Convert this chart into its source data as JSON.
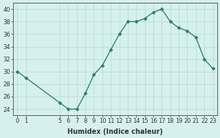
{
  "x": [
    0,
    1,
    5,
    6,
    7,
    8,
    9,
    10,
    11,
    12,
    13,
    14,
    15,
    16,
    17,
    18,
    19,
    20,
    21,
    22,
    23
  ],
  "y": [
    30,
    29,
    25,
    24,
    24,
    26.5,
    29.5,
    31,
    33.5,
    36,
    38,
    38,
    38.5,
    39.5,
    40,
    38,
    37,
    36.5,
    35.5,
    32,
    30.5
  ],
  "xlabel": "Humidex (Indice chaleur)",
  "xticks": [
    0,
    1,
    5,
    6,
    7,
    8,
    9,
    10,
    11,
    12,
    13,
    14,
    15,
    16,
    17,
    18,
    19,
    20,
    21,
    22,
    23
  ],
  "yticks": [
    24,
    26,
    28,
    30,
    32,
    34,
    36,
    38,
    40
  ],
  "ylim": [
    23,
    41
  ],
  "xlim": [
    -0.5,
    23.5
  ],
  "line_color": "#2d7d6e",
  "marker_color": "#2d7d6e",
  "bg_color": "#d6f0ee",
  "grid_color": "#b0d8d4",
  "axis_color": "#555555",
  "tick_fontsize": 6,
  "label_fontsize": 7
}
